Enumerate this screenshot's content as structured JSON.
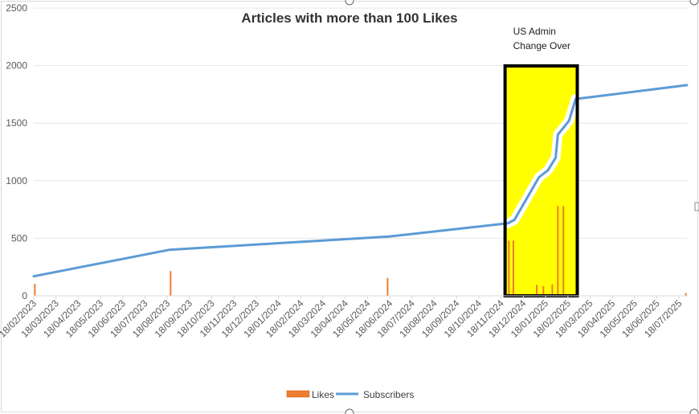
{
  "chart_data": {
    "type": "bar+line",
    "title": "Articles with more than 100 Likes",
    "ylim": [
      0,
      2500
    ],
    "yticks": [
      0,
      500,
      1000,
      1500,
      2000,
      2500
    ],
    "x_labels": [
      "18/02/2023",
      "18/03/2023",
      "18/04/2023",
      "18/05/2023",
      "18/06/2023",
      "18/07/2023",
      "18/08/2023",
      "18/09/2023",
      "18/10/2023",
      "18/11/2023",
      "18/12/2023",
      "18/01/2024",
      "18/02/2024",
      "18/03/2024",
      "18/04/2024",
      "18/05/2024",
      "18/06/2024",
      "18/07/2024",
      "18/08/2024",
      "18/09/2024",
      "18/10/2024",
      "18/11/2024",
      "18/12/2024",
      "18/01/2025",
      "18/02/2025",
      "18/03/2025",
      "18/04/2025",
      "18/05/2025",
      "18/06/2025",
      "18/07/2025"
    ],
    "x_range": [
      0,
      29.35
    ],
    "series": [
      {
        "name": "Likes",
        "kind": "bar",
        "color": "#ED7D31",
        "points": [
          {
            "x": 0.05,
            "y": 105
          },
          {
            "x": 6.15,
            "y": 215
          },
          {
            "x": 15.9,
            "y": 155
          },
          {
            "x": 21.35,
            "y": 480
          },
          {
            "x": 21.55,
            "y": 480
          },
          {
            "x": 22.6,
            "y": 95
          },
          {
            "x": 22.9,
            "y": 85
          },
          {
            "x": 23.3,
            "y": 100
          },
          {
            "x": 23.55,
            "y": 780
          },
          {
            "x": 23.8,
            "y": 780
          },
          {
            "x": 29.3,
            "y": 25
          }
        ]
      },
      {
        "name": "Subscribers",
        "kind": "line",
        "color": "#5B9BD5",
        "points": [
          {
            "x": 0,
            "y": 170
          },
          {
            "x": 6.1,
            "y": 400
          },
          {
            "x": 15.95,
            "y": 515
          },
          {
            "x": 21.3,
            "y": 630
          },
          {
            "x": 21.6,
            "y": 660
          },
          {
            "x": 22.7,
            "y": 1030
          },
          {
            "x": 23.1,
            "y": 1090
          },
          {
            "x": 23.45,
            "y": 1200
          },
          {
            "x": 23.55,
            "y": 1400
          },
          {
            "x": 24.05,
            "y": 1520
          },
          {
            "x": 24.35,
            "y": 1710
          },
          {
            "x": 29.35,
            "y": 1830
          }
        ]
      }
    ],
    "annotation": {
      "line1": "US Admin",
      "line2": "Change Over",
      "highlight_color": "#FFFF00",
      "box_range": [
        21.25,
        24.35
      ]
    },
    "legend": {
      "position": "bottom",
      "likes_label": "Likes",
      "subscribers_label": "Subscribers"
    },
    "grid": true
  }
}
